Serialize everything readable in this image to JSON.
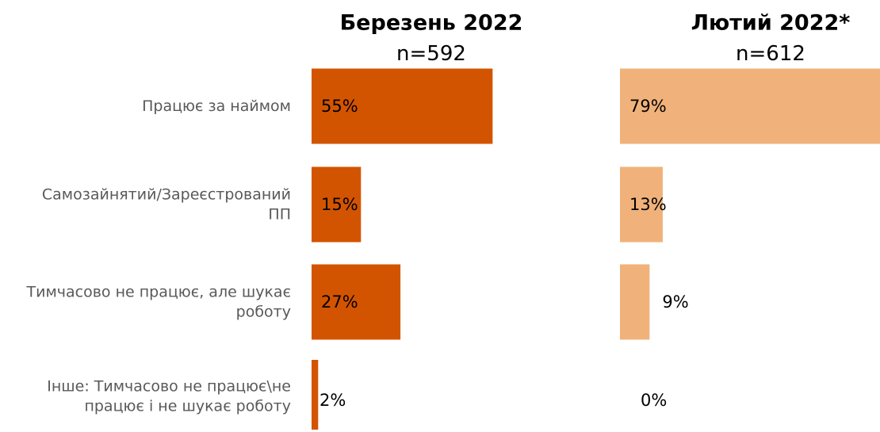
{
  "chart_data": {
    "type": "bar",
    "orientation": "horizontal",
    "categories": [
      [
        "Працює за наймом"
      ],
      [
        "Самозайнятий/Зареєстрований",
        "ПП"
      ],
      [
        "Тимчасово не працює, але шукає",
        "роботу"
      ],
      [
        "Інше: Тимчасово не працює\\не",
        "працює і не шукає роботу"
      ]
    ],
    "panels": [
      {
        "title": "Березень 2022",
        "n_label": "n=592",
        "color": "#d35400",
        "values": [
          55,
          15,
          27,
          2
        ],
        "labels": [
          "55%",
          "15%",
          "27%",
          "2%"
        ]
      },
      {
        "title": "Лютий 2022*",
        "n_label": "n=612",
        "color": "#f0b27a",
        "values": [
          79,
          13,
          9,
          0
        ],
        "labels": [
          "79%",
          "13%",
          "9%",
          "0%"
        ]
      }
    ],
    "xlim": [
      0,
      79
    ],
    "grid": false,
    "legend": "none"
  }
}
